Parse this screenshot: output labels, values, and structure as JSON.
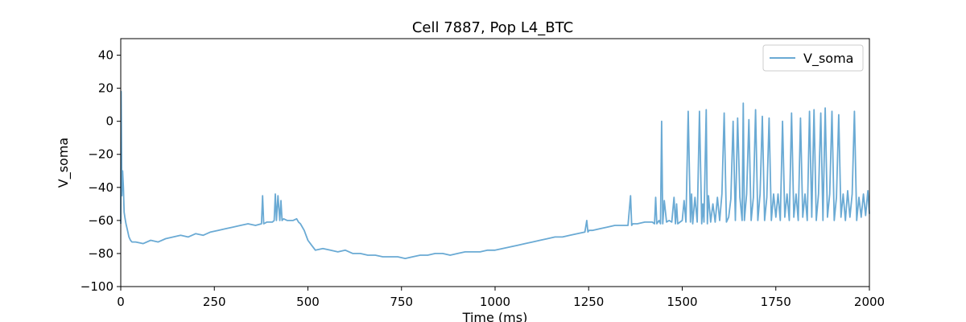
{
  "chart_data": {
    "type": "line",
    "title": "Cell 7887, Pop L4_BTC",
    "xlabel": "Time (ms)",
    "ylabel": "V_soma",
    "xlim": [
      0,
      2000
    ],
    "ylim": [
      -100,
      50
    ],
    "xticks": [
      0,
      250,
      500,
      750,
      1000,
      1250,
      1500,
      1750,
      2000
    ],
    "yticks": [
      -100,
      -80,
      -60,
      -40,
      -20,
      0,
      20,
      40
    ],
    "grid": false,
    "legend_position": "top-right",
    "series": [
      {
        "name": "V_soma",
        "color": "#6aaad4",
        "x": [
          0,
          1,
          3,
          5,
          7,
          9,
          11,
          14,
          18,
          22,
          26,
          30,
          40,
          60,
          80,
          100,
          120,
          140,
          160,
          180,
          200,
          220,
          240,
          260,
          280,
          300,
          320,
          340,
          360,
          376,
          379,
          382,
          390,
          405,
          410,
          413,
          416,
          420,
          425,
          428,
          431,
          435,
          445,
          460,
          470,
          475,
          480,
          490,
          500,
          510,
          520,
          540,
          560,
          580,
          600,
          620,
          640,
          660,
          680,
          700,
          720,
          740,
          760,
          780,
          800,
          820,
          840,
          860,
          880,
          900,
          920,
          940,
          960,
          980,
          1000,
          1020,
          1040,
          1060,
          1080,
          1100,
          1120,
          1140,
          1160,
          1180,
          1200,
          1220,
          1240,
          1245,
          1248,
          1251,
          1260,
          1280,
          1300,
          1320,
          1340,
          1355,
          1362,
          1365,
          1368,
          1380,
          1400,
          1420,
          1426,
          1429,
          1432,
          1438,
          1442,
          1445,
          1448,
          1452,
          1458,
          1465,
          1472,
          1478,
          1482,
          1485,
          1488,
          1494,
          1500,
          1505,
          1510,
          1516,
          1522,
          1525,
          1528,
          1534,
          1540,
          1546,
          1552,
          1555,
          1558,
          1564,
          1567,
          1570,
          1576,
          1582,
          1588,
          1594,
          1600,
          1606,
          1612,
          1618,
          1624,
          1630,
          1636,
          1642,
          1648,
          1654,
          1660,
          1663,
          1666,
          1672,
          1678,
          1684,
          1690,
          1696,
          1702,
          1708,
          1714,
          1720,
          1726,
          1732,
          1738,
          1744,
          1750,
          1756,
          1762,
          1768,
          1774,
          1780,
          1786,
          1792,
          1798,
          1804,
          1810,
          1816,
          1822,
          1828,
          1834,
          1840,
          1846,
          1852,
          1858,
          1864,
          1870,
          1876,
          1882,
          1888,
          1894,
          1900,
          1906,
          1912,
          1918,
          1924,
          1930,
          1936,
          1942,
          1948,
          1954,
          1960,
          1966,
          1972,
          1978,
          1984,
          1990,
          1996,
          2000
        ],
        "y": [
          -62,
          18,
          -45,
          -30,
          -40,
          -55,
          -58,
          -62,
          -66,
          -70,
          -72,
          -73,
          -73,
          -74,
          -72,
          -73,
          -71,
          -70,
          -69,
          -70,
          -68,
          -69,
          -67,
          -66,
          -65,
          -64,
          -63,
          -62,
          -63,
          -62,
          -45,
          -62,
          -61,
          -61,
          -60,
          -44,
          -60,
          -45,
          -60,
          -48,
          -60,
          -59,
          -60,
          -60,
          -59,
          -61,
          -62,
          -66,
          -72,
          -75,
          -78,
          -77,
          -78,
          -79,
          -78,
          -80,
          -80,
          -81,
          -81,
          -82,
          -82,
          -82,
          -83,
          -82,
          -81,
          -81,
          -80,
          -80,
          -81,
          -80,
          -79,
          -79,
          -79,
          -78,
          -78,
          -77,
          -76,
          -75,
          -74,
          -73,
          -72,
          -71,
          -70,
          -70,
          -69,
          -68,
          -67,
          -60,
          -67,
          -66,
          -66,
          -65,
          -64,
          -63,
          -63,
          -63,
          -45,
          -63,
          -62,
          -62,
          -61,
          -61,
          -62,
          -46,
          -62,
          -60,
          -62,
          0,
          -62,
          -48,
          -61,
          -60,
          -61,
          -46,
          -62,
          -50,
          -62,
          -61,
          -60,
          -48,
          -61,
          6,
          -61,
          -44,
          -62,
          -46,
          -61,
          6,
          -62,
          -50,
          -61,
          7,
          -62,
          -45,
          -61,
          -50,
          -61,
          -46,
          -60,
          -44,
          5,
          -61,
          -58,
          -47,
          0,
          -60,
          2,
          -46,
          -60,
          11,
          -60,
          -44,
          1,
          -60,
          -46,
          7,
          -60,
          -44,
          3,
          -60,
          -46,
          2,
          -60,
          -44,
          -58,
          -44,
          -60,
          0,
          -58,
          -44,
          -60,
          5,
          -58,
          -44,
          -60,
          2,
          -58,
          -44,
          -60,
          6,
          -58,
          7,
          -60,
          -44,
          5,
          -60,
          8,
          -58,
          -44,
          6,
          -60,
          -46,
          4,
          -58,
          -44,
          -60,
          -42,
          -58,
          -44,
          6,
          -60,
          -46,
          -58,
          -44,
          -57,
          -42,
          -56
        ]
      }
    ]
  }
}
